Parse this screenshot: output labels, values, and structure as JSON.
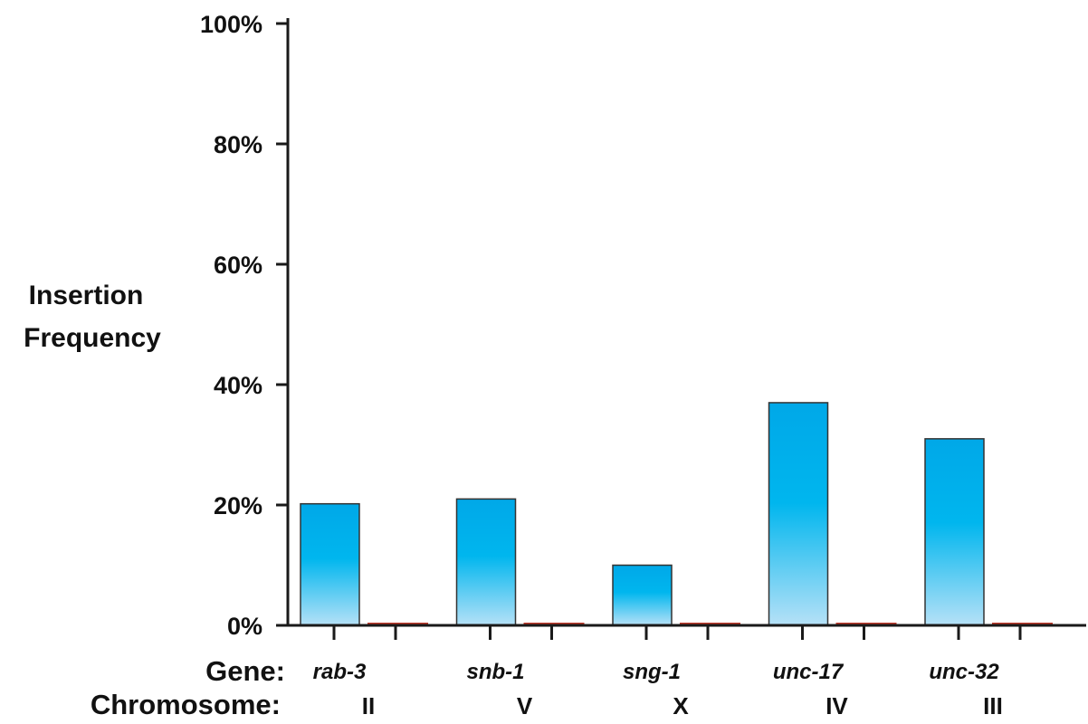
{
  "chart_data": {
    "type": "bar",
    "ylabel": [
      "Insertion",
      "Frequency"
    ],
    "yticks": [
      "0%",
      "20%",
      "40%",
      "60%",
      "80%",
      "100%"
    ],
    "ylim": [
      0,
      100
    ],
    "row_titles": {
      "gene": "Gene:",
      "chromosome": "Chromosome:"
    },
    "categories": [
      "rab-3",
      "snb-1",
      "sng-1",
      "unc-17",
      "unc-32"
    ],
    "chromosomes": [
      "II",
      "V",
      "X",
      "IV",
      "III"
    ],
    "series": [
      {
        "values": [
          20.2,
          21,
          10,
          37,
          31
        ]
      },
      {
        "values": [
          0.3,
          0.3,
          0.3,
          0.3,
          0.3
        ]
      }
    ],
    "grid": false,
    "legend": "none"
  },
  "colors": {
    "bar_top": "#00a8e8",
    "bar_mid": "#00b6ee",
    "bar_bottom": "#b6e1f7",
    "bar_outline": "#333333",
    "secondary_bar": "#c0392b",
    "axis": "#1a1a1a"
  }
}
